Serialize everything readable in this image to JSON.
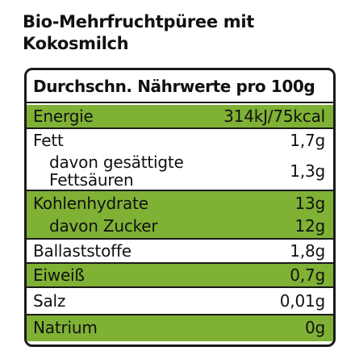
{
  "title": {
    "line1": "Bio-Mehrfruchtpüree mit",
    "line2": "Kokosmilch"
  },
  "table": {
    "header": "Durchschn. Nährwerte pro 100g",
    "rows": [
      {
        "label": "Energie",
        "value": "314kJ/75kcal"
      },
      {
        "label": "Fett",
        "value": "1,7g"
      },
      {
        "label_line1": "davon gesättigte",
        "label_line2": "Fettsäuren",
        "value": "1,3g"
      },
      {
        "label": "Kohlenhydrate",
        "value": "13g"
      },
      {
        "label": "davon Zucker",
        "value": "12g"
      },
      {
        "label": "Ballaststoffe",
        "value": "1,8g"
      },
      {
        "label": "Eiweiß",
        "value": "0,7g"
      },
      {
        "label": "Salz",
        "value": "0,01g"
      },
      {
        "label": "Natrium",
        "value": "0g"
      }
    ]
  },
  "colors": {
    "highlight": "#7fb135",
    "border": "#1a1a1a"
  }
}
